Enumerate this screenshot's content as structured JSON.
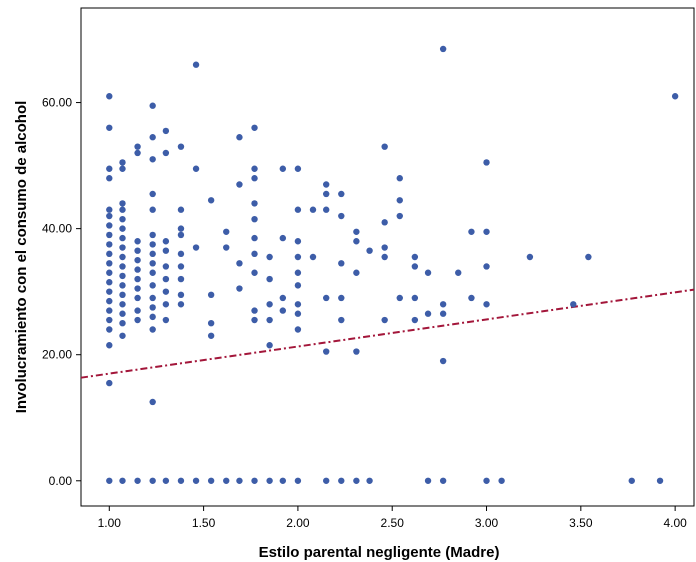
{
  "chart_data": {
    "type": "scatter",
    "title": "",
    "xlabel": "Estilo parental negligente (Madre)",
    "ylabel": "Involucramiento con el consumo de alcohol",
    "xlim": [
      0.85,
      4.1
    ],
    "ylim": [
      -4,
      75
    ],
    "x_ticks": [
      1.0,
      1.5,
      2.0,
      2.5,
      3.0,
      3.5,
      4.0
    ],
    "x_tick_labels": [
      "1.00",
      "1.50",
      "2.00",
      "2.50",
      "3.00",
      "3.50",
      "4.00"
    ],
    "y_ticks": [
      0,
      20,
      40,
      60
    ],
    "y_tick_labels": [
      "0.00",
      "20.00",
      "40.00",
      "60.00"
    ],
    "grid": false,
    "marker_color": "#3d5da8",
    "fit_line": {
      "color": "#a3163a",
      "style": "dash-dot",
      "intercept": 12.7,
      "slope": 4.3
    },
    "points": [
      [
        1.0,
        61
      ],
      [
        1.0,
        56
      ],
      [
        1.0,
        49.5
      ],
      [
        1.0,
        48
      ],
      [
        1.0,
        43
      ],
      [
        1.0,
        42
      ],
      [
        1.0,
        40.5
      ],
      [
        1.0,
        39
      ],
      [
        1.0,
        37.5
      ],
      [
        1.0,
        36
      ],
      [
        1.0,
        34.5
      ],
      [
        1.0,
        33
      ],
      [
        1.0,
        31.5
      ],
      [
        1.0,
        30
      ],
      [
        1.0,
        28.5
      ],
      [
        1.0,
        27
      ],
      [
        1.0,
        25.5
      ],
      [
        1.0,
        24
      ],
      [
        1.0,
        21.5
      ],
      [
        1.0,
        15.5
      ],
      [
        1.0,
        0
      ],
      [
        1.07,
        50.5
      ],
      [
        1.07,
        49.5
      ],
      [
        1.07,
        44
      ],
      [
        1.07,
        43
      ],
      [
        1.07,
        41.5
      ],
      [
        1.07,
        40
      ],
      [
        1.07,
        38.5
      ],
      [
        1.07,
        37
      ],
      [
        1.07,
        35.5
      ],
      [
        1.07,
        34
      ],
      [
        1.07,
        32.5
      ],
      [
        1.07,
        31
      ],
      [
        1.07,
        29.5
      ],
      [
        1.07,
        28
      ],
      [
        1.07,
        26.5
      ],
      [
        1.07,
        25
      ],
      [
        1.07,
        23
      ],
      [
        1.07,
        0
      ],
      [
        1.15,
        53
      ],
      [
        1.15,
        52
      ],
      [
        1.15,
        38
      ],
      [
        1.15,
        36.5
      ],
      [
        1.15,
        35
      ],
      [
        1.15,
        33.5
      ],
      [
        1.15,
        32
      ],
      [
        1.15,
        30.5
      ],
      [
        1.15,
        29
      ],
      [
        1.15,
        27
      ],
      [
        1.15,
        25.5
      ],
      [
        1.15,
        0
      ],
      [
        1.23,
        59.5
      ],
      [
        1.23,
        54.5
      ],
      [
        1.23,
        51
      ],
      [
        1.23,
        45.5
      ],
      [
        1.23,
        43
      ],
      [
        1.23,
        39
      ],
      [
        1.23,
        37.5
      ],
      [
        1.23,
        36
      ],
      [
        1.23,
        34.5
      ],
      [
        1.23,
        33
      ],
      [
        1.23,
        31
      ],
      [
        1.23,
        29
      ],
      [
        1.23,
        27.5
      ],
      [
        1.23,
        26
      ],
      [
        1.23,
        24
      ],
      [
        1.23,
        12.5
      ],
      [
        1.23,
        0
      ],
      [
        1.3,
        55.5
      ],
      [
        1.3,
        52
      ],
      [
        1.3,
        38
      ],
      [
        1.3,
        36.5
      ],
      [
        1.3,
        34
      ],
      [
        1.3,
        32
      ],
      [
        1.3,
        30
      ],
      [
        1.3,
        28
      ],
      [
        1.3,
        25.5
      ],
      [
        1.3,
        0
      ],
      [
        1.38,
        53
      ],
      [
        1.38,
        43
      ],
      [
        1.38,
        40
      ],
      [
        1.38,
        39
      ],
      [
        1.38,
        36
      ],
      [
        1.38,
        34
      ],
      [
        1.38,
        32
      ],
      [
        1.38,
        29.5
      ],
      [
        1.38,
        28
      ],
      [
        1.38,
        0
      ],
      [
        1.46,
        66
      ],
      [
        1.46,
        49.5
      ],
      [
        1.46,
        37
      ],
      [
        1.46,
        0
      ],
      [
        1.54,
        44.5
      ],
      [
        1.54,
        29.5
      ],
      [
        1.54,
        25
      ],
      [
        1.54,
        23
      ],
      [
        1.54,
        0
      ],
      [
        1.62,
        39.5
      ],
      [
        1.62,
        37
      ],
      [
        1.62,
        0
      ],
      [
        1.69,
        54.5
      ],
      [
        1.69,
        47
      ],
      [
        1.69,
        34.5
      ],
      [
        1.69,
        30.5
      ],
      [
        1.69,
        0
      ],
      [
        1.77,
        56
      ],
      [
        1.77,
        49.5
      ],
      [
        1.77,
        48
      ],
      [
        1.77,
        44
      ],
      [
        1.77,
        41.5
      ],
      [
        1.77,
        38.5
      ],
      [
        1.77,
        36
      ],
      [
        1.77,
        33
      ],
      [
        1.77,
        27
      ],
      [
        1.77,
        25.5
      ],
      [
        1.77,
        0
      ],
      [
        1.85,
        35.5
      ],
      [
        1.85,
        32
      ],
      [
        1.85,
        28
      ],
      [
        1.85,
        25.5
      ],
      [
        1.85,
        21.5
      ],
      [
        1.85,
        0
      ],
      [
        1.92,
        49.5
      ],
      [
        1.92,
        38.5
      ],
      [
        1.92,
        29
      ],
      [
        1.92,
        27
      ],
      [
        1.92,
        0
      ],
      [
        2.0,
        49.5
      ],
      [
        2.0,
        43
      ],
      [
        2.0,
        38
      ],
      [
        2.0,
        35.5
      ],
      [
        2.0,
        33
      ],
      [
        2.0,
        31
      ],
      [
        2.0,
        28
      ],
      [
        2.0,
        26.5
      ],
      [
        2.0,
        24
      ],
      [
        2.0,
        0
      ],
      [
        2.08,
        43
      ],
      [
        2.08,
        35.5
      ],
      [
        2.15,
        47
      ],
      [
        2.15,
        45.5
      ],
      [
        2.15,
        43
      ],
      [
        2.15,
        29
      ],
      [
        2.15,
        20.5
      ],
      [
        2.15,
        0
      ],
      [
        2.23,
        45.5
      ],
      [
        2.23,
        42
      ],
      [
        2.23,
        34.5
      ],
      [
        2.23,
        29
      ],
      [
        2.23,
        25.5
      ],
      [
        2.23,
        0
      ],
      [
        2.31,
        39.5
      ],
      [
        2.31,
        38
      ],
      [
        2.31,
        33
      ],
      [
        2.31,
        20.5
      ],
      [
        2.31,
        0
      ],
      [
        2.38,
        36.5
      ],
      [
        2.38,
        0
      ],
      [
        2.46,
        53
      ],
      [
        2.46,
        41
      ],
      [
        2.46,
        37
      ],
      [
        2.46,
        35.5
      ],
      [
        2.46,
        25.5
      ],
      [
        2.54,
        48
      ],
      [
        2.54,
        44.5
      ],
      [
        2.54,
        42
      ],
      [
        2.54,
        29
      ],
      [
        2.62,
        35.5
      ],
      [
        2.62,
        34
      ],
      [
        2.62,
        29
      ],
      [
        2.62,
        25.5
      ],
      [
        2.69,
        33
      ],
      [
        2.69,
        26.5
      ],
      [
        2.69,
        0
      ],
      [
        2.77,
        68.5
      ],
      [
        2.77,
        28
      ],
      [
        2.77,
        26.5
      ],
      [
        2.77,
        19
      ],
      [
        2.77,
        0
      ],
      [
        2.85,
        33
      ],
      [
        2.92,
        39.5
      ],
      [
        2.92,
        29
      ],
      [
        3.0,
        50.5
      ],
      [
        3.0,
        39.5
      ],
      [
        3.0,
        34
      ],
      [
        3.0,
        28
      ],
      [
        3.0,
        0
      ],
      [
        3.08,
        0
      ],
      [
        3.23,
        35.5
      ],
      [
        3.46,
        28
      ],
      [
        3.54,
        35.5
      ],
      [
        3.77,
        0
      ],
      [
        3.92,
        0
      ],
      [
        4.0,
        61
      ]
    ]
  }
}
